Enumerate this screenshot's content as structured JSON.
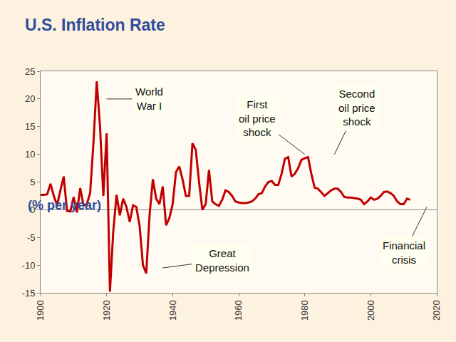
{
  "chart_data": {
    "type": "line",
    "title": "U.S. Inflation Rate",
    "subtitle": "(% per year)",
    "x": [
      1900,
      1901,
      1902,
      1903,
      1904,
      1905,
      1906,
      1907,
      1908,
      1909,
      1910,
      1911,
      1912,
      1913,
      1914,
      1915,
      1916,
      1917,
      1918,
      1919,
      1920,
      1921,
      1922,
      1923,
      1924,
      1925,
      1926,
      1927,
      1928,
      1929,
      1930,
      1931,
      1932,
      1933,
      1934,
      1935,
      1936,
      1937,
      1938,
      1939,
      1940,
      1941,
      1942,
      1943,
      1944,
      1945,
      1946,
      1947,
      1948,
      1949,
      1950,
      1951,
      1952,
      1953,
      1954,
      1955,
      1956,
      1957,
      1958,
      1959,
      1960,
      1961,
      1962,
      1963,
      1964,
      1965,
      1966,
      1967,
      1968,
      1969,
      1970,
      1971,
      1972,
      1973,
      1974,
      1975,
      1976,
      1977,
      1978,
      1979,
      1980,
      1981,
      1982,
      1983,
      1984,
      1985,
      1986,
      1987,
      1988,
      1989,
      1990,
      1991,
      1992,
      1993,
      1994,
      1995,
      1996,
      1997,
      1998,
      1999,
      2000,
      2001,
      2002,
      2003,
      2004,
      2005,
      2006,
      2007,
      2008,
      2009,
      2010,
      2011,
      2012
    ],
    "values": [
      2.7,
      2.7,
      2.8,
      4.7,
      2.5,
      0.8,
      3.5,
      6.0,
      -0.2,
      -0.3,
      2.3,
      -0.5,
      3.9,
      0.8,
      1.0,
      3.0,
      12.0,
      23.2,
      15.0,
      2.5,
      13.8,
      -14.8,
      -4.0,
      2.7,
      -1.0,
      2.0,
      0.5,
      -2.2,
      0.8,
      0.5,
      -3.0,
      -10.0,
      -11.5,
      -1.0,
      5.5,
      2.0,
      1.0,
      4.2,
      -2.8,
      -1.5,
      1.0,
      6.8,
      7.8,
      5.5,
      2.5,
      2.5,
      12.0,
      10.8,
      5.0,
      0.0,
      1.0,
      7.2,
      1.5,
      1.0,
      0.7,
      1.8,
      3.5,
      3.2,
      2.5,
      1.5,
      1.3,
      1.2,
      1.2,
      1.3,
      1.5,
      2.0,
      2.8,
      3.0,
      4.2,
      5.0,
      5.2,
      4.5,
      4.5,
      6.5,
      9.2,
      9.5,
      6.0,
      6.5,
      7.5,
      9.0,
      9.3,
      9.5,
      6.5,
      4.0,
      3.8,
      3.2,
      2.5,
      3.0,
      3.5,
      3.8,
      3.8,
      3.2,
      2.3,
      2.2,
      2.2,
      2.1,
      2.0,
      1.8,
      1.0,
      1.5,
      2.2,
      1.8,
      2.0,
      2.5,
      3.2,
      3.3,
      3.0,
      2.5,
      1.5,
      1.0,
      1.0,
      2.0,
      1.8
    ],
    "color": "#c00000",
    "xlim": [
      1900,
      2020
    ],
    "xticks": [
      1900,
      1920,
      1940,
      1960,
      1980,
      2000,
      2020
    ],
    "ylim": [
      -15,
      25
    ],
    "yticks": [
      -15,
      -10,
      -5,
      0,
      5,
      10,
      15,
      20,
      25
    ],
    "grid": false,
    "annotations": [
      {
        "text": "World\nWar I",
        "x": 1920,
        "y": 20
      },
      {
        "text": "First\noil price\nshock",
        "x": 1980,
        "y": 10
      },
      {
        "text": "Second\noil price\nshock",
        "x": 1989,
        "y": 10
      },
      {
        "text": "Great\nDepression",
        "x": 1937,
        "y": -10.5
      },
      {
        "text": "Financial\ncrisis",
        "x": 2017,
        "y": 0.5
      }
    ]
  }
}
